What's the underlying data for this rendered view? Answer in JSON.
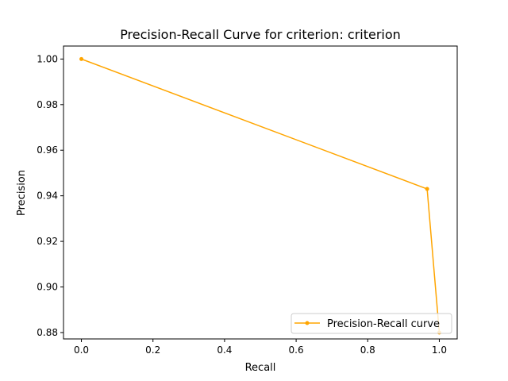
{
  "chart_data": {
    "type": "line",
    "title": "Precision-Recall Curve for criterion: criterion",
    "xlabel": "Recall",
    "ylabel": "Precision",
    "xlim": [
      -0.05,
      1.05
    ],
    "ylim": [
      0.8772,
      1.0057
    ],
    "x_ticks": [
      0.0,
      0.2,
      0.4,
      0.6,
      0.8,
      1.0
    ],
    "x_tick_labels": [
      "0.0",
      "0.2",
      "0.4",
      "0.6",
      "0.8",
      "1.0"
    ],
    "y_ticks": [
      0.88,
      0.9,
      0.92,
      0.94,
      0.96,
      0.98,
      1.0
    ],
    "y_tick_labels": [
      "0.88",
      "0.90",
      "0.92",
      "0.94",
      "0.96",
      "0.98",
      "1.00"
    ],
    "grid": false,
    "legend_position": "lower-right",
    "series": [
      {
        "name": "Precision-Recall curve",
        "color": "#ffa500",
        "marker": "circle",
        "x": [
          0.0,
          0.966,
          1.0
        ],
        "y": [
          1.0,
          0.943,
          0.88
        ]
      }
    ]
  }
}
